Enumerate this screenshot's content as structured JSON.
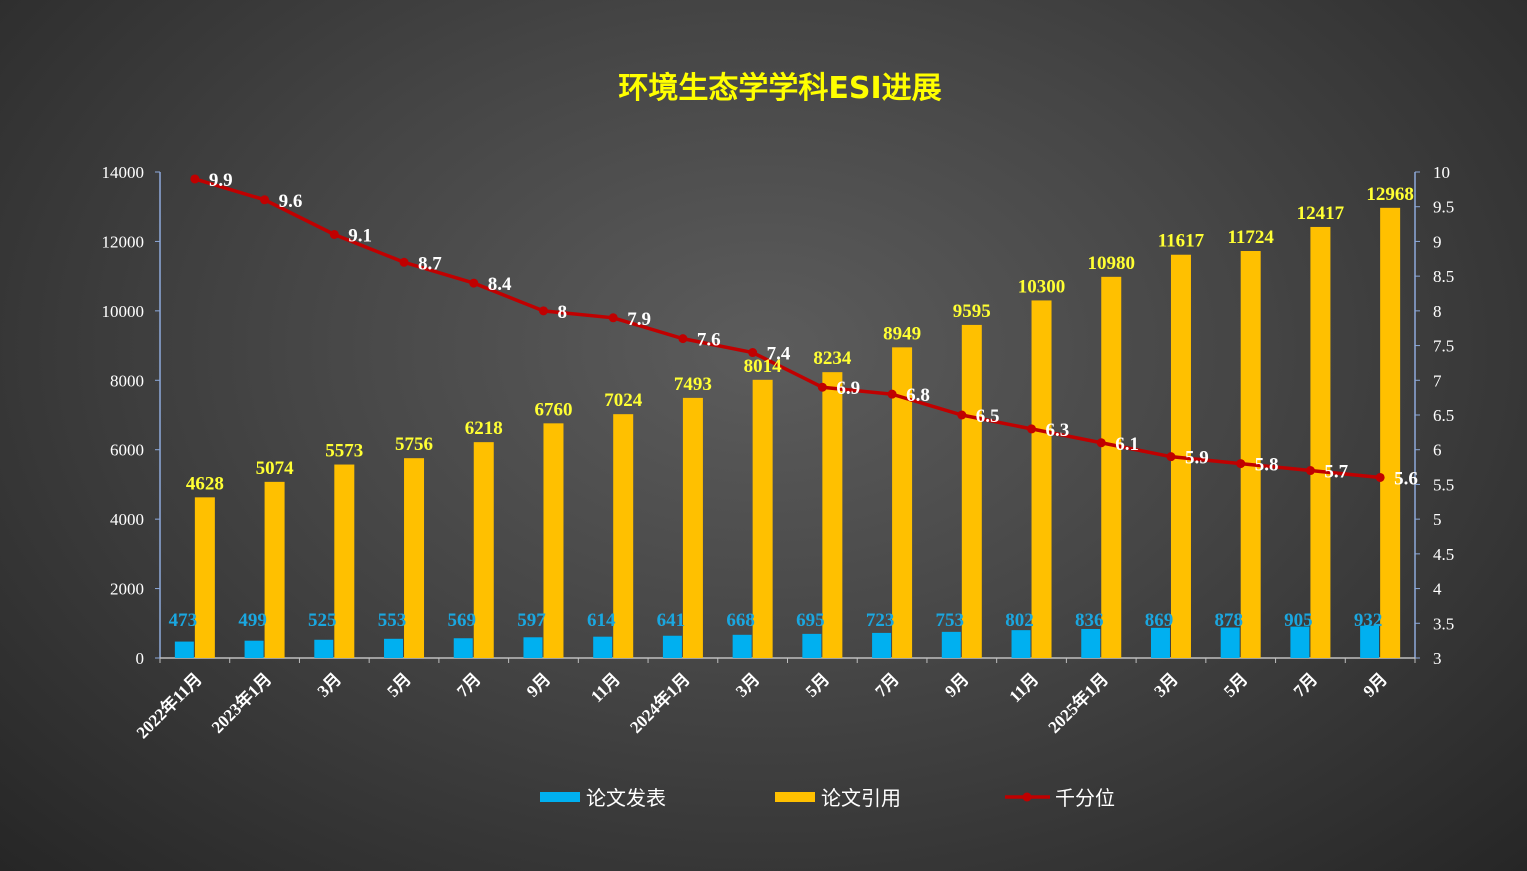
{
  "chart_data": {
    "type": "bar",
    "title": "环境生态学学科ESI进展",
    "categories": [
      "2022年11月",
      "2023年1月",
      "3月",
      "5月",
      "7月",
      "9月",
      "11月",
      "2024年1月",
      "3月",
      "5月",
      "7月",
      "9月",
      "11月",
      "2025年1月",
      "3月",
      "5月",
      "7月",
      "9月"
    ],
    "series": [
      {
        "name": "论文发表",
        "type": "bar",
        "axis": "left",
        "color": "#00b0f0",
        "values": [
          473,
          499,
          525,
          553,
          569,
          597,
          614,
          641,
          668,
          695,
          723,
          753,
          802,
          836,
          869,
          878,
          905,
          932
        ]
      },
      {
        "name": "论文引用",
        "type": "bar",
        "axis": "left",
        "color": "#ffc000",
        "values": [
          4628,
          5074,
          5573,
          5756,
          6218,
          6760,
          7024,
          7493,
          8014,
          8234,
          8949,
          9595,
          10300,
          10980,
          11617,
          11724,
          12417,
          12968
        ]
      },
      {
        "name": "千分位",
        "type": "line",
        "axis": "right",
        "color": "#c00000",
        "values": [
          9.9,
          9.6,
          9.1,
          8.7,
          8.4,
          8,
          7.9,
          7.6,
          7.4,
          6.9,
          6.8,
          6.5,
          6.3,
          6.1,
          5.9,
          5.8,
          5.7,
          5.6
        ]
      }
    ],
    "ylim": [
      0,
      14000
    ],
    "yticks": [
      "0",
      "2000",
      "4000",
      "6000",
      "8000",
      "10000",
      "12000",
      "14000"
    ],
    "y2lim": [
      3,
      10
    ],
    "y2ticks": [
      "3",
      "3.5",
      "4",
      "4.5",
      "5",
      "5.5",
      "6",
      "6.5",
      "7",
      "7.5",
      "8",
      "8.5",
      "9",
      "9.5",
      "10"
    ],
    "legend_position": "bottom",
    "grid": false
  }
}
